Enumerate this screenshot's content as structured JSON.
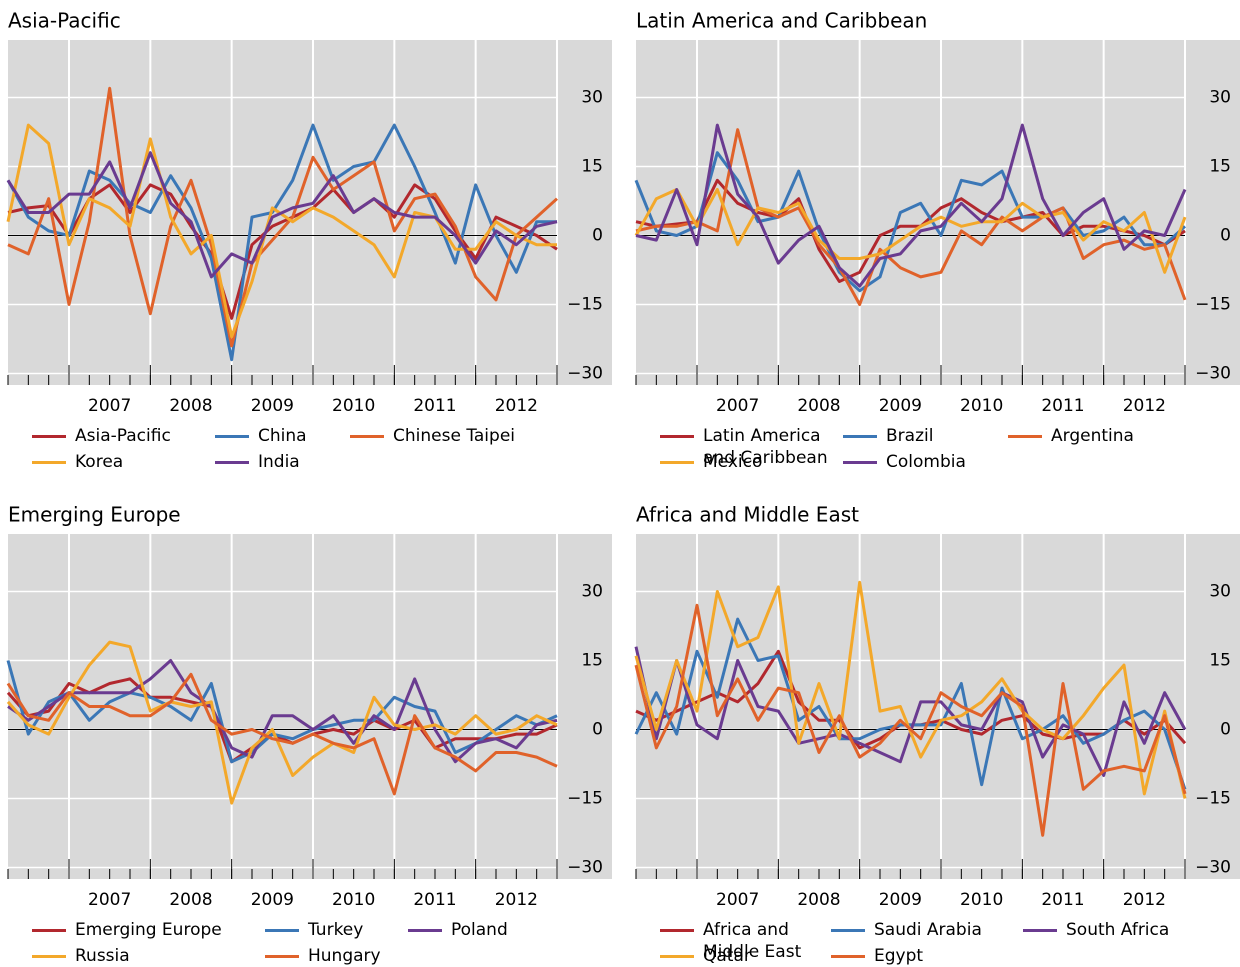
{
  "chart_data": [
    {
      "type": "line",
      "title": "Asia-Pacific",
      "x": [
        2006.25,
        2006.5,
        2006.75,
        2007,
        2007.25,
        2007.5,
        2007.75,
        2008,
        2008.25,
        2008.5,
        2008.75,
        2009,
        2009.25,
        2009.5,
        2009.75,
        2010,
        2010.25,
        2010.5,
        2010.75,
        2011,
        2011.25,
        2011.5,
        2011.75,
        2012,
        2012.25,
        2012.5,
        2012.75,
        2013
      ],
      "xlim": [
        2006.25,
        2013
      ],
      "xticks": [
        2007,
        2008,
        2009,
        2010,
        2011,
        2012
      ],
      "ylim": [
        -32.5,
        42.5
      ],
      "yticks": [
        {
          "value": -30,
          "label": "−30"
        },
        {
          "value": -15,
          "label": "−15"
        },
        0,
        15,
        30
      ],
      "grid": true,
      "series": [
        {
          "name": "Asia-Pacific",
          "color": "#b2282e",
          "values": [
            5,
            6,
            6.5,
            0,
            8,
            11,
            5,
            11,
            9,
            2,
            -4,
            -18,
            -2,
            2,
            4,
            6,
            10,
            5,
            8,
            4,
            11,
            8,
            1,
            -5,
            4,
            2,
            0,
            -3
          ]
        },
        {
          "name": "China",
          "color": "#3b77b6",
          "values": [
            12,
            4,
            1,
            0,
            14,
            12,
            7,
            5,
            13,
            6,
            -5,
            -27,
            4,
            5,
            12,
            24,
            12,
            15,
            16,
            24,
            15,
            5,
            -6,
            11,
            0,
            -8,
            3,
            3
          ]
        },
        {
          "name": "Chinese Taipei",
          "color": "#e0622a",
          "values": [
            -2,
            -4,
            8,
            -15,
            3,
            32,
            0,
            -17,
            2,
            12,
            -2,
            -24,
            -6,
            -1,
            4,
            17,
            10,
            13,
            16,
            1,
            8,
            9,
            2,
            -9,
            -14,
            0,
            4,
            8
          ]
        },
        {
          "name": "Korea",
          "color": "#f3a82a",
          "values": [
            3,
            24,
            20,
            -2,
            8,
            6,
            2,
            21,
            4,
            -4,
            0,
            -22,
            -10,
            6,
            3,
            6,
            4,
            1,
            -2,
            -9,
            5,
            4,
            -3,
            -3,
            3,
            0,
            -2,
            -2
          ]
        },
        {
          "name": "India",
          "color": "#6a3b90",
          "values": [
            12,
            5,
            5,
            9,
            9,
            16,
            6,
            18,
            7,
            3,
            -9,
            -4,
            -6,
            4,
            6,
            7,
            13,
            5,
            8,
            5,
            4,
            4,
            0,
            -6,
            1,
            -2,
            2,
            3
          ]
        }
      ]
    },
    {
      "type": "line",
      "title": "Latin America and Caribbean",
      "x": [
        2006.25,
        2006.5,
        2006.75,
        2007,
        2007.25,
        2007.5,
        2007.75,
        2008,
        2008.25,
        2008.5,
        2008.75,
        2009,
        2009.25,
        2009.5,
        2009.75,
        2010,
        2010.25,
        2010.5,
        2010.75,
        2011,
        2011.25,
        2011.5,
        2011.75,
        2012,
        2012.25,
        2012.5,
        2012.75,
        2013
      ],
      "xlim": [
        2006.25,
        2013
      ],
      "xticks": [
        2007,
        2008,
        2009,
        2010,
        2011,
        2012
      ],
      "ylim": [
        -32.5,
        42.5
      ],
      "yticks": [
        {
          "value": -30,
          "label": "−30"
        },
        {
          "value": -15,
          "label": "−15"
        },
        0,
        15,
        30
      ],
      "grid": true,
      "series": [
        {
          "name": "Latin America and Caribbean",
          "color": "#b2282e",
          "values": [
            3,
            2,
            2.5,
            3,
            12,
            7,
            5,
            4,
            8,
            -3,
            -10,
            -8,
            0,
            2,
            2,
            6,
            8,
            5,
            3,
            4,
            5,
            0,
            2,
            2,
            1,
            0,
            -2,
            1
          ]
        },
        {
          "name": "Brazil",
          "color": "#3b77b6",
          "values": [
            12,
            1,
            0,
            2,
            18,
            12,
            3,
            4,
            14,
            1,
            -8,
            -12,
            -9,
            5,
            7,
            0,
            12,
            11,
            14,
            4,
            4,
            6,
            0,
            1,
            4,
            -2,
            -2,
            2
          ]
        },
        {
          "name": "Argentina",
          "color": "#e0622a",
          "values": [
            1,
            2,
            2,
            3,
            1,
            23,
            6,
            4,
            6,
            -2,
            -7,
            -15,
            -3,
            -7,
            -9,
            -8,
            1,
            -2,
            4,
            1,
            4,
            6,
            -5,
            -2,
            -1,
            -3,
            -2,
            -14
          ]
        },
        {
          "name": "Mexico",
          "color": "#f3a82a",
          "values": [
            0,
            8,
            10,
            2,
            10,
            -2,
            6,
            5,
            7,
            -1,
            -5,
            -5,
            -4,
            -1,
            2,
            4,
            2,
            3,
            3,
            7,
            4,
            5,
            -1,
            3,
            1,
            5,
            -8,
            4
          ]
        },
        {
          "name": "Colombia",
          "color": "#6a3b90",
          "values": [
            0,
            -1,
            10,
            -2,
            24,
            9,
            4,
            -6,
            -1,
            2,
            -7,
            -11,
            -5,
            -4,
            1,
            2,
            7,
            3,
            8,
            24,
            8,
            0,
            5,
            8,
            -3,
            1,
            0,
            10
          ]
        }
      ]
    },
    {
      "type": "line",
      "title": "Emerging Europe",
      "x": [
        2006.25,
        2006.5,
        2006.75,
        2007,
        2007.25,
        2007.5,
        2007.75,
        2008,
        2008.25,
        2008.5,
        2008.75,
        2009,
        2009.25,
        2009.5,
        2009.75,
        2010,
        2010.25,
        2010.5,
        2010.75,
        2011,
        2011.25,
        2011.5,
        2011.75,
        2012,
        2012.25,
        2012.5,
        2012.75,
        2013
      ],
      "xlim": [
        2006.25,
        2013
      ],
      "xticks": [
        2007,
        2008,
        2009,
        2010,
        2011,
        2012
      ],
      "ylim": [
        -32.5,
        42.5
      ],
      "yticks": [
        {
          "value": -30,
          "label": "−30"
        },
        {
          "value": -15,
          "label": "−15"
        },
        0,
        15,
        30
      ],
      "grid": true,
      "series": [
        {
          "name": "Emerging Europe",
          "color": "#b2282e",
          "values": [
            8,
            3,
            4,
            10,
            8,
            10,
            11,
            7,
            7,
            6,
            5,
            -7,
            -4,
            -1,
            -3,
            -1,
            0,
            -1,
            2,
            0,
            2,
            -4,
            -2,
            -2,
            -2,
            -1,
            -1,
            1
          ]
        },
        {
          "name": "Turkey",
          "color": "#3b77b6",
          "values": [
            15,
            -1,
            6,
            8,
            2,
            6,
            8,
            7,
            5,
            2,
            10,
            -7,
            -5,
            -1,
            -2,
            0,
            1,
            2,
            2,
            7,
            5,
            4,
            -5,
            -3,
            0,
            3,
            1,
            3
          ]
        },
        {
          "name": "Poland",
          "color": "#6a3b90",
          "values": [
            5,
            2,
            5,
            8,
            8,
            8,
            8,
            11,
            15,
            8,
            5,
            -4,
            -6,
            3,
            3,
            0,
            3,
            -3,
            3,
            0,
            11,
            0,
            -7,
            -3,
            -2,
            -4,
            1,
            2
          ]
        },
        {
          "name": "Russia",
          "color": "#f3a82a",
          "values": [
            6,
            1,
            -1,
            7,
            14,
            19,
            18,
            4,
            6,
            5,
            6,
            -16,
            -4,
            0,
            -10,
            -6,
            -3,
            -5,
            7,
            1,
            0,
            1,
            -1,
            3,
            -1,
            0,
            3,
            1
          ]
        },
        {
          "name": "Hungary",
          "color": "#e0622a",
          "values": [
            10,
            3,
            2,
            8,
            5,
            5,
            3,
            3,
            6,
            12,
            2,
            -1,
            0,
            -2,
            -3,
            -1,
            -3,
            -4,
            -2,
            -14,
            3,
            -4,
            -6,
            -9,
            -5,
            -5,
            -6,
            -8
          ]
        }
      ]
    },
    {
      "type": "line",
      "title": "Africa and Middle East",
      "x": [
        2006.25,
        2006.5,
        2006.75,
        2007,
        2007.25,
        2007.5,
        2007.75,
        2008,
        2008.25,
        2008.5,
        2008.75,
        2009,
        2009.25,
        2009.5,
        2009.75,
        2010,
        2010.25,
        2010.5,
        2010.75,
        2011,
        2011.25,
        2011.5,
        2011.75,
        2012,
        2012.25,
        2012.5,
        2012.75,
        2013
      ],
      "xlim": [
        2006.25,
        2013
      ],
      "xticks": [
        2007,
        2008,
        2009,
        2010,
        2011,
        2012
      ],
      "ylim": [
        -32.5,
        42.5
      ],
      "yticks": [
        {
          "value": -30,
          "label": "−30"
        },
        {
          "value": -15,
          "label": "−15"
        },
        0,
        15,
        30
      ],
      "grid": true,
      "series": [
        {
          "name": "Africa and Middle East",
          "color": "#b2282e",
          "values": [
            4,
            2,
            4,
            6,
            8,
            6,
            10,
            17,
            6,
            2,
            2,
            -4,
            -2,
            1,
            1,
            2,
            0,
            -1,
            2,
            3,
            -1,
            -2,
            -1,
            -1,
            2,
            -1,
            2,
            -3
          ]
        },
        {
          "name": "Saudi Arabia",
          "color": "#3b77b6",
          "values": [
            -1,
            8,
            -1,
            17,
            7,
            24,
            15,
            16,
            2,
            5,
            -2,
            -2,
            0,
            1,
            1,
            1,
            10,
            -12,
            9,
            -2,
            0,
            3,
            -3,
            -1,
            2,
            4,
            0,
            -13
          ]
        },
        {
          "name": "South Africa",
          "color": "#6a3b90",
          "values": [
            18,
            -2,
            15,
            1,
            -2,
            15,
            5,
            4,
            -3,
            -2,
            -1,
            -3,
            -5,
            -7,
            6,
            6,
            1,
            0,
            8,
            6,
            -6,
            1,
            -1,
            -10,
            6,
            -3,
            8,
            0
          ]
        },
        {
          "name": "Qatar",
          "color": "#f3a82a",
          "values": [
            16,
            0,
            15,
            4,
            30,
            18,
            20,
            31,
            -3,
            10,
            -2,
            32,
            4,
            5,
            -6,
            2,
            3,
            6,
            11,
            4,
            0,
            -2,
            3,
            9,
            14,
            -14,
            4,
            -15
          ]
        },
        {
          "name": "Egypt",
          "color": "#e0622a",
          "values": [
            14,
            -4,
            5,
            27,
            3,
            11,
            2,
            9,
            8,
            -5,
            3,
            -6,
            -3,
            2,
            -2,
            8,
            5,
            3,
            8,
            5,
            -23,
            10,
            -13,
            -9,
            -8,
            -9,
            3,
            -14
          ]
        }
      ]
    }
  ]
}
